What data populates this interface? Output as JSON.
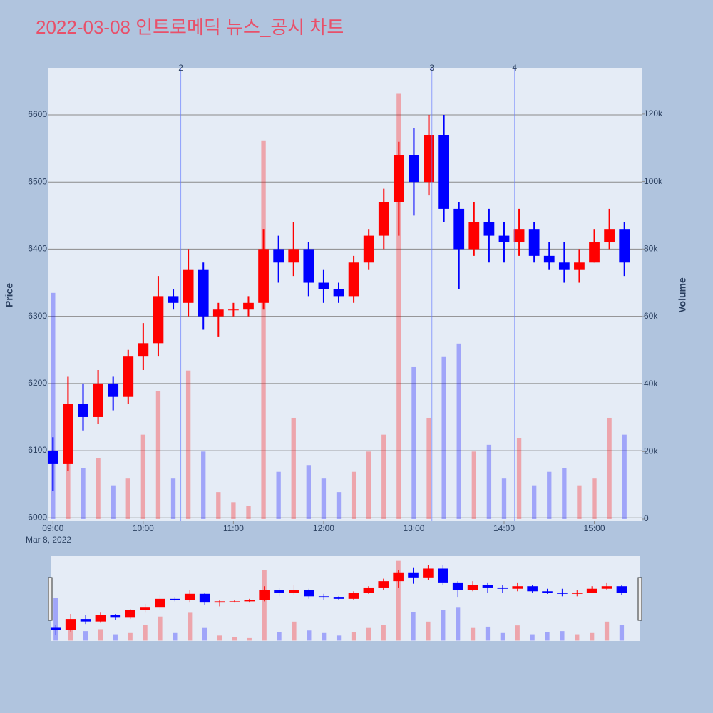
{
  "chart_data": {
    "type": "candlestick",
    "title": "2022-03-08 인트로메딕 뉴스_공시 차트",
    "y_title": "Price",
    "y2_title": "Volume",
    "x_date_label": "Mar 8, 2022",
    "increasing_color": "#ff0000",
    "decreasing_color": "#0000ff",
    "x": [
      "09:00",
      "09:10",
      "09:20",
      "09:30",
      "09:40",
      "09:50",
      "10:00",
      "10:10",
      "10:20",
      "10:30",
      "10:40",
      "10:50",
      "11:00",
      "11:10",
      "11:20",
      "11:30",
      "11:40",
      "11:50",
      "12:00",
      "12:10",
      "12:20",
      "12:30",
      "12:40",
      "12:50",
      "13:00",
      "13:10",
      "13:20",
      "13:30",
      "13:40",
      "13:50",
      "14:00",
      "14:10",
      "14:20",
      "14:30",
      "14:40",
      "14:50",
      "15:00",
      "15:10",
      "15:20"
    ],
    "open": [
      6100,
      6080,
      6170,
      6150,
      6200,
      6180,
      6240,
      6260,
      6330,
      6320,
      6370,
      6300,
      6310,
      6310,
      6320,
      6400,
      6380,
      6400,
      6350,
      6340,
      6330,
      6380,
      6420,
      6470,
      6540,
      6500,
      6570,
      6460,
      6400,
      6440,
      6420,
      6410,
      6430,
      6390,
      6380,
      6370,
      6380,
      6410,
      6430
    ],
    "high": [
      6120,
      6210,
      6200,
      6220,
      6210,
      6250,
      6290,
      6360,
      6340,
      6400,
      6380,
      6320,
      6320,
      6330,
      6430,
      6420,
      6440,
      6410,
      6370,
      6350,
      6390,
      6430,
      6490,
      6560,
      6580,
      6600,
      6600,
      6470,
      6470,
      6460,
      6440,
      6460,
      6440,
      6410,
      6410,
      6400,
      6430,
      6460,
      6440
    ],
    "low": [
      6040,
      6070,
      6130,
      6140,
      6160,
      6170,
      6220,
      6240,
      6310,
      6300,
      6280,
      6270,
      6300,
      6300,
      6310,
      6350,
      6360,
      6330,
      6320,
      6320,
      6320,
      6370,
      6400,
      6420,
      6450,
      6480,
      6440,
      6340,
      6390,
      6380,
      6380,
      6390,
      6380,
      6370,
      6350,
      6350,
      6380,
      6400,
      6360
    ],
    "close": [
      6080,
      6170,
      6150,
      6200,
      6180,
      6240,
      6260,
      6330,
      6320,
      6370,
      6300,
      6310,
      6310,
      6320,
      6400,
      6380,
      6400,
      6350,
      6340,
      6330,
      6380,
      6420,
      6470,
      6540,
      6500,
      6570,
      6460,
      6400,
      6440,
      6420,
      6410,
      6430,
      6390,
      6380,
      6370,
      6380,
      6410,
      6430,
      6380
    ],
    "volume": [
      67000,
      20000,
      15000,
      18000,
      10000,
      12000,
      25000,
      38000,
      12000,
      44000,
      20000,
      8000,
      5000,
      4000,
      112000,
      14000,
      30000,
      16000,
      12000,
      8000,
      14000,
      20000,
      25000,
      126000,
      45000,
      30000,
      48000,
      52000,
      20000,
      22000,
      12000,
      24000,
      10000,
      14000,
      15000,
      10000,
      12000,
      30000,
      25000
    ],
    "annotations": [
      {
        "x": "10:25",
        "text": "2"
      },
      {
        "x": "13:12",
        "text": "3"
      },
      {
        "x": "14:07",
        "text": "4"
      }
    ],
    "xlim": [
      "08:57",
      "15:32"
    ],
    "xticks": [
      "09:00",
      "10:00",
      "11:00",
      "12:00",
      "13:00",
      "14:00",
      "15:00"
    ],
    "ylim": [
      5995,
      6669
    ],
    "yticks": [
      6000,
      6100,
      6200,
      6300,
      6400,
      6500,
      6600
    ],
    "y2lim": [
      -634,
      133500
    ],
    "y2ticks": [
      0,
      {
        "value": 20000,
        "label": "20k"
      },
      {
        "value": 40000,
        "label": "40k"
      },
      {
        "value": 60000,
        "label": "60k"
      },
      {
        "value": 80000,
        "label": "80k"
      },
      {
        "value": 100000,
        "label": "100k"
      },
      {
        "value": 120000,
        "label": "120k"
      }
    ],
    "grid": true
  }
}
